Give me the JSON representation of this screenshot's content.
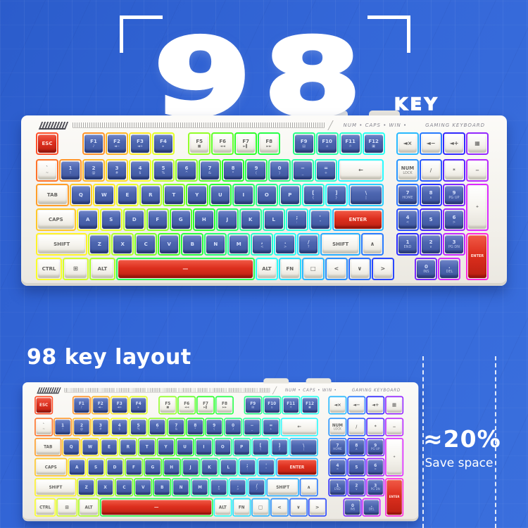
{
  "colors": {
    "background_blue": "#3467d8",
    "key_blue": "#4d66b0",
    "key_red": "#dd2f1e",
    "key_white": "#f5f3ed",
    "keyboard_body": "#f1efe9"
  },
  "hero": {
    "number": "98",
    "key_label": "KEY"
  },
  "section": {
    "title": "98 key layout",
    "save_percent": "≈20%",
    "save_caption": "Save space"
  },
  "keyboard": {
    "status_text": "NUM • CAPS • WIN •",
    "brand_text": "GAMING KEYBOARD",
    "rows": [
      {
        "main": [
          {
            "l": "ESC",
            "c": "r"
          },
          {
            "l": "F1",
            "s": "♪",
            "ml": 1
          },
          {
            "l": "F2",
            "s": "◄−"
          },
          {
            "l": "F3",
            "s": "◄+"
          },
          {
            "l": "F4",
            "s": "▸"
          },
          {
            "l": "F5",
            "s": "■",
            "c": "w",
            "ml": 0.55
          },
          {
            "l": "F6",
            "s": "◄◄",
            "c": "w"
          },
          {
            "l": "F7",
            "s": "►▌",
            "c": "w"
          },
          {
            "l": "F8",
            "s": "►►",
            "c": "w"
          },
          {
            "l": "F9",
            "s": "▤",
            "ml": 0.5
          },
          {
            "l": "F10",
            "s": "⌂"
          },
          {
            "l": "F11",
            "s": "☼"
          },
          {
            "l": "F12",
            "s": "▣"
          }
        ],
        "pad": [
          {
            "l": "◄×",
            "c": "w",
            "ic": 1,
            "n": "key-mute"
          },
          {
            "l": "◄−",
            "c": "w",
            "ic": 1,
            "n": "key-vol-down"
          },
          {
            "l": "◄+",
            "c": "w",
            "ic": 1,
            "n": "key-vol-up"
          },
          {
            "l": "▦",
            "c": "w",
            "ic": 1,
            "n": "key-calculator"
          }
        ]
      },
      {
        "main": [
          {
            "l": "`",
            "s": "~",
            "c": "w",
            "n": "key-backtick"
          },
          {
            "l": "1",
            "s": "!"
          },
          {
            "l": "2",
            "s": "@"
          },
          {
            "l": "3",
            "s": "#"
          },
          {
            "l": "4",
            "s": "$"
          },
          {
            "l": "5",
            "s": "%"
          },
          {
            "l": "6",
            "s": "^"
          },
          {
            "l": "7",
            "s": "&"
          },
          {
            "l": "8",
            "s": "*"
          },
          {
            "l": "9",
            "s": "("
          },
          {
            "l": "0",
            "s": ")"
          },
          {
            "l": "−",
            "s": "_",
            "n": "key-minus"
          },
          {
            "l": "=",
            "s": "+",
            "n": "key-equals"
          },
          {
            "l": "←",
            "c": "w",
            "u": 2,
            "ic": 1,
            "n": "key-backspace"
          }
        ],
        "pad": [
          {
            "l": "NUM",
            "s": "LOCK",
            "c": "w",
            "n": "key-num-lock"
          },
          {
            "l": "/",
            "c": "w",
            "n": "key-num-slash"
          },
          {
            "l": "*",
            "c": "w",
            "n": "key-num-star"
          },
          {
            "l": "−",
            "c": "w",
            "n": "key-num-minus"
          }
        ]
      },
      {
        "main": [
          {
            "l": "TAB",
            "c": "w",
            "u": 1.45
          },
          {
            "l": "Q"
          },
          {
            "l": "W"
          },
          {
            "l": "E"
          },
          {
            "l": "R"
          },
          {
            "l": "T"
          },
          {
            "l": "Y"
          },
          {
            "l": "U"
          },
          {
            "l": "I"
          },
          {
            "l": "O"
          },
          {
            "l": "P"
          },
          {
            "l": "[",
            "s": "{",
            "n": "key-lbracket"
          },
          {
            "l": "]",
            "s": "}",
            "n": "key-rbracket"
          },
          {
            "l": "\\",
            "s": "|",
            "u": 1.55,
            "n": "key-backslash"
          }
        ],
        "pad": [
          {
            "l": "7",
            "s": "HOME",
            "n": "key-num-7"
          },
          {
            "l": "8",
            "s": "∧",
            "n": "key-num-8"
          },
          {
            "l": "9",
            "s": "PG UP",
            "n": "key-num-9"
          },
          {
            "l": "+",
            "c": "w",
            "h": 2,
            "n": "key-num-plus"
          }
        ]
      },
      {
        "main": [
          {
            "l": "CAPS",
            "c": "w",
            "u": 1.75
          },
          {
            "l": "A"
          },
          {
            "l": "S"
          },
          {
            "l": "D"
          },
          {
            "l": "F"
          },
          {
            "l": "G"
          },
          {
            "l": "H"
          },
          {
            "l": "J"
          },
          {
            "l": "K"
          },
          {
            "l": "L"
          },
          {
            "l": ";",
            "s": ":",
            "n": "key-semicolon"
          },
          {
            "l": "'",
            "s": "\"",
            "n": "key-quote"
          },
          {
            "l": "ENTER",
            "c": "r",
            "u": 2.25
          }
        ],
        "pad": [
          {
            "l": "4",
            "s": "<",
            "n": "key-num-4"
          },
          {
            "l": "5",
            "n": "key-num-5"
          },
          {
            "l": "6",
            "s": ">",
            "n": "key-num-6"
          },
          {
            "sp": 1
          }
        ]
      },
      {
        "main": [
          {
            "l": "SHIFT",
            "c": "w",
            "u": 2.25
          },
          {
            "l": "Z"
          },
          {
            "l": "X"
          },
          {
            "l": "C"
          },
          {
            "l": "V"
          },
          {
            "l": "B"
          },
          {
            "l": "N"
          },
          {
            "l": "M"
          },
          {
            "l": ",",
            "s": "<",
            "n": "key-comma"
          },
          {
            "l": ".",
            "s": ">",
            "n": "key-period"
          },
          {
            "l": "/",
            "s": "?",
            "n": "key-slash"
          },
          {
            "l": "SHIFT",
            "c": "w",
            "u": 1.75,
            "n": "key-right-shift"
          },
          {
            "l": "∧",
            "c": "w",
            "ic": 1,
            "n": "key-up"
          }
        ],
        "pad": [
          {
            "l": "1",
            "s": "END",
            "n": "key-num-1"
          },
          {
            "l": "2",
            "s": "∨",
            "n": "key-num-2"
          },
          {
            "l": "3",
            "s": "PG DN",
            "n": "key-num-3"
          },
          {
            "l": "ENTER",
            "c": "r",
            "h": 2,
            "n": "key-num-enter"
          }
        ]
      },
      {
        "main": [
          {
            "l": "CTRL",
            "c": "w",
            "u": 1.15
          },
          {
            "l": "⊞",
            "c": "w",
            "u": 1.15,
            "ic": 1,
            "n": "key-win"
          },
          {
            "l": "ALT",
            "c": "w",
            "u": 1.15
          },
          {
            "l": "—",
            "c": "r",
            "u": 6,
            "ic": 1,
            "n": "key-space"
          },
          {
            "l": "ALT",
            "c": "w",
            "n": "key-right-alt"
          },
          {
            "l": "FN",
            "c": "w"
          },
          {
            "l": "□",
            "c": "w",
            "ic": 1,
            "n": "key-menu"
          },
          {
            "l": "<",
            "c": "w",
            "ic": 1,
            "n": "key-left"
          },
          {
            "l": "∨",
            "c": "w",
            "ic": 1,
            "n": "key-down"
          },
          {
            "l": ">",
            "c": "w",
            "ic": 1,
            "n": "key-right"
          }
        ],
        "pad": [
          {
            "sp": 1,
            "u": 0.8
          },
          {
            "l": "0",
            "s": "INS",
            "n": "key-num-0"
          },
          {
            "l": ".",
            "s": "DEL",
            "n": "key-num-dot"
          }
        ]
      }
    ]
  }
}
